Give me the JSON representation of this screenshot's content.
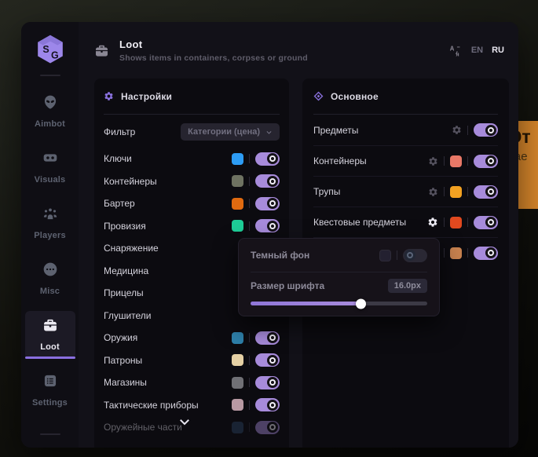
{
  "header": {
    "title": "Loot",
    "subtitle": "Shows items in containers, corpses or ground"
  },
  "language": {
    "en": "EN",
    "ru": "RU",
    "selected": "RU"
  },
  "sidebar": {
    "logo_text": "SG",
    "items": [
      {
        "label": "Aimbot",
        "icon": "alien-icon",
        "active": false
      },
      {
        "label": "Visuals",
        "icon": "goggles-icon",
        "active": false
      },
      {
        "label": "Players",
        "icon": "players-icon",
        "active": false
      },
      {
        "label": "Misc",
        "icon": "dots-circle-icon",
        "active": false
      },
      {
        "label": "Loot",
        "icon": "briefcase-icon",
        "active": true
      },
      {
        "label": "Settings",
        "icon": "list-icon",
        "active": false
      }
    ]
  },
  "left_panel": {
    "title": "Настройки",
    "filter_label": "Фильтр",
    "filter_value": "Категории (цена)",
    "items": [
      {
        "label": "Ключи",
        "color": "#2d9cf4",
        "enabled": true
      },
      {
        "label": "Контейнеры",
        "color": "#6e7261",
        "enabled": true
      },
      {
        "label": "Бартер",
        "color": "#e06a10",
        "enabled": true
      },
      {
        "label": "Провизия",
        "color": "#1ecd97",
        "enabled": true
      },
      {
        "label": "Снаряжение"
      },
      {
        "label": "Медицина"
      },
      {
        "label": "Прицелы"
      },
      {
        "label": "Глушители"
      },
      {
        "label": "Оружия",
        "color": "#2e80aa",
        "enabled": true
      },
      {
        "label": "Патроны",
        "color": "#e5d0a4",
        "enabled": true
      },
      {
        "label": "Магазины",
        "color": "#707075",
        "enabled": true
      },
      {
        "label": "Тактические приборы",
        "color": "#b899a3",
        "enabled": true
      },
      {
        "label": "Оружейные части",
        "color": "#2b4563",
        "enabled": true
      }
    ]
  },
  "right_panel": {
    "title": "Основное",
    "items": [
      {
        "label": "Предметы",
        "enabled": true
      },
      {
        "label": "Контейнеры",
        "color": "#e87867",
        "enabled": true
      },
      {
        "label": "Трупы",
        "color": "#f2a122",
        "enabled": true
      },
      {
        "label": "Квестовые предметы",
        "color": "#e1491f",
        "enabled": true
      },
      {
        "label": "",
        "color": "#c8824f",
        "enabled": true
      }
    ]
  },
  "popup": {
    "dark_bg_label": "Темный фон",
    "dark_bg_color": "#232030",
    "dark_bg_enabled": false,
    "font_size_label": "Размер шрифта",
    "font_size_value": "16.0px",
    "slider_percent": 62
  },
  "background_tooltip": {
    "line1": "Эт",
    "line2": "кае"
  },
  "colors": {
    "accent": "#8b72e0",
    "toggle_on": "#a78bdb",
    "tooltip_orange": "#d8872b"
  }
}
